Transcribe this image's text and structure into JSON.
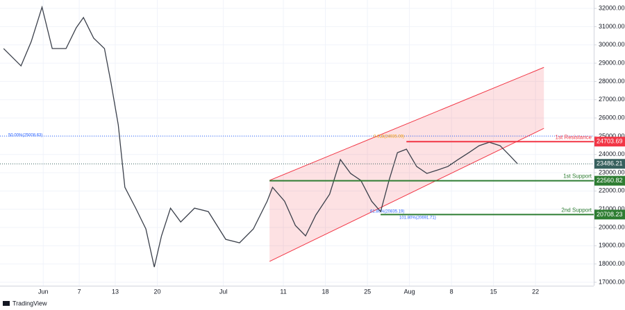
{
  "chart_data": {
    "type": "line",
    "watermark": "TradingView",
    "xlim": [
      -7.2,
      91.7
    ],
    "xticks": [
      {
        "value": 0,
        "label": "Jun"
      },
      {
        "value": 6,
        "label": "7"
      },
      {
        "value": 12,
        "label": "13"
      },
      {
        "value": 19,
        "label": "20"
      },
      {
        "value": 30,
        "label": "Jul"
      },
      {
        "value": 40,
        "label": "11"
      },
      {
        "value": 47,
        "label": "18"
      },
      {
        "value": 54,
        "label": "25"
      },
      {
        "value": 61,
        "label": "Aug"
      },
      {
        "value": 68,
        "label": "8"
      },
      {
        "value": 75,
        "label": "15"
      },
      {
        "value": 82,
        "label": "22"
      }
    ],
    "ylim": [
      16810,
      32460
    ],
    "yticks": [
      {
        "value": 17000,
        "label": "17000.00"
      },
      {
        "value": 18000,
        "label": "18000.00"
      },
      {
        "value": 19000,
        "label": "19000.00"
      },
      {
        "value": 20000,
        "label": "20000.00"
      },
      {
        "value": 21000,
        "label": "21000.00"
      },
      {
        "value": 22000,
        "label": "22000.00"
      },
      {
        "value": 23000,
        "label": "23000.00"
      },
      {
        "value": 24000,
        "label": "24000.00"
      },
      {
        "value": 25000,
        "label": "25000.00"
      },
      {
        "value": 26000,
        "label": "26000.00"
      },
      {
        "value": 27000,
        "label": "27000.00"
      },
      {
        "value": 28000,
        "label": "28000.00"
      },
      {
        "value": 29000,
        "label": "29000.00"
      },
      {
        "value": 30000,
        "label": "30000.00"
      },
      {
        "value": 31000,
        "label": "31000.00"
      },
      {
        "value": 32000,
        "label": "32000.00"
      }
    ],
    "series": [
      {
        "color": "#3a3f4a",
        "x": [
          -6.6,
          -3.7,
          -2.0,
          -0.2,
          1.5,
          3.8,
          5.5,
          6.7,
          8.4,
          10.2,
          11.3,
          12.5,
          13.6,
          15.4,
          17.1,
          18.5,
          19.7,
          21.2,
          22.9,
          25.2,
          27.5,
          30.4,
          32.7,
          35.0,
          37.3,
          38.2,
          40.2,
          42.0,
          43.7,
          45.4,
          47.7,
          49.5,
          51.2,
          52.9,
          54.7,
          56.2,
          57.6,
          59.0,
          60.5,
          62.2,
          63.9,
          65.7,
          67.4,
          69.1,
          70.9,
          72.6,
          74.3,
          76.1,
          77.8,
          79.0
        ],
        "values": [
          29800,
          28850,
          30180,
          32070,
          29800,
          29800,
          30940,
          31500,
          30370,
          29800,
          27900,
          25620,
          22200,
          21060,
          19920,
          17830,
          19540,
          21060,
          20300,
          21060,
          20870,
          19350,
          19160,
          19920,
          21440,
          22200,
          21440,
          20110,
          19540,
          20680,
          21820,
          23720,
          22960,
          22580,
          21440,
          20870,
          22580,
          24100,
          24290,
          23340,
          22960,
          23150,
          23340,
          23720,
          24100,
          24480,
          24670,
          24480,
          23910,
          23486.21
        ]
      }
    ],
    "current_price": {
      "value": 23486.21,
      "color": "#37605d"
    },
    "levels": [
      {
        "label": "1st Resistance",
        "value": 24703.69,
        "color": "#f23645",
        "start": 60.5
      },
      {
        "label": "1st Support",
        "value": 22560.82,
        "color": "#2e7d32",
        "start": 37.7
      },
      {
        "label": "2nd Support",
        "value": 20708.23,
        "color": "#2e7d32",
        "start": 56.2
      }
    ],
    "fib_line": {
      "text": "50.00%(25008.63)",
      "value": 25008.63,
      "color": "#2962ff"
    },
    "fib_notes": [
      {
        "text": "0.618(24935.09)",
        "value": 24935.09,
        "color": "#f59d00"
      },
      {
        "text": "61.80%(20835.19)",
        "value": 20835.19,
        "color": "#2962ff"
      },
      {
        "text": "101.80%(20691.71)",
        "value": 20691.71,
        "color": "#2962ff"
      }
    ],
    "channel": {
      "color": "#f23645",
      "upper": [
        [
          37.7,
          22580
        ],
        [
          83.4,
          28770
        ]
      ],
      "lower": [
        [
          37.7,
          18140
        ],
        [
          83.4,
          25430
        ]
      ]
    }
  }
}
